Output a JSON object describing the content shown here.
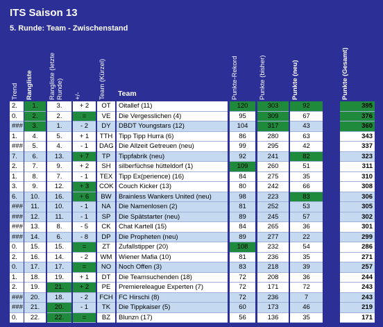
{
  "header": {
    "title": "ITS Saison 13",
    "subtitle": "5. Runde: Team - Zwischenstand"
  },
  "table": {
    "columns": [
      "Trend",
      "Rangliste",
      "Rangliste (letzte Runde)",
      "+/-",
      "Team (Kürzel)",
      "Team",
      "Punkte-Rekord",
      "Punkte (bisher)",
      "Punkte (neu)",
      "Punkte (Gesamt)"
    ],
    "rows": [
      {
        "cells": [
          "2.",
          "1.",
          "3.",
          "+ 2",
          "OT",
          "Oitallef (11)",
          120,
          303,
          92,
          395
        ],
        "fill": "#ffffff",
        "colors": [
          null,
          "#1f8a3b",
          null,
          null,
          null,
          null,
          "#1f8a3b",
          "#1f8a3b",
          "#1f8a3b",
          "#1f8a3b"
        ]
      },
      {
        "cells": [
          "0.",
          "2.",
          "2.",
          "=",
          "VE",
          "Die Vergesslichen (4)",
          95,
          309,
          67,
          376
        ],
        "fill": "#ffffff",
        "colors": [
          null,
          "#1f8a3b",
          null,
          "#1f8a3b",
          null,
          null,
          null,
          "#1f8a3b",
          null,
          "#1f8a3b"
        ]
      },
      {
        "cells": [
          "###",
          "3.",
          "1.",
          "- 2",
          "DY",
          "DBDT Youngstars (12)",
          104,
          317,
          43,
          360
        ],
        "fill": "#c5d9f1",
        "colors": [
          null,
          "#1f8a3b",
          null,
          null,
          null,
          null,
          null,
          "#1f8a3b",
          null,
          "#1f8a3b"
        ]
      },
      {
        "cells": [
          "1.",
          "4.",
          "5.",
          "+ 1",
          "TTH",
          "Tipp Tipp Hurra (6)",
          86,
          280,
          63,
          343
        ],
        "fill": "#ffffff",
        "colors": null
      },
      {
        "cells": [
          "###",
          "5.",
          "4.",
          "- 1",
          "DAG",
          "Die Allzeit Getreuen (neu)",
          99,
          295,
          42,
          337
        ],
        "fill": "#ffffff",
        "colors": null
      },
      {
        "cells": [
          "7.",
          "6.",
          "13.",
          "+ 7",
          "TP",
          "Tippfabrik (neu)",
          92,
          241,
          82,
          323
        ],
        "fill": "#c5d9f1",
        "colors": [
          null,
          null,
          null,
          "#1f8a3b",
          null,
          null,
          null,
          null,
          "#1f8a3b",
          null
        ]
      },
      {
        "cells": [
          "2.",
          "7.",
          "9.",
          "+ 2",
          "SH",
          "silberfüchse hütteldorf (1)",
          109,
          260,
          51,
          311
        ],
        "fill": "#ffffff",
        "colors": [
          null,
          null,
          null,
          null,
          null,
          null,
          "#1f8a3b",
          null,
          null,
          null
        ]
      },
      {
        "cells": [
          "1.",
          "8.",
          "7.",
          "- 1",
          "TEX",
          "Tipp Ex(perience) (16)",
          84,
          275,
          35,
          310
        ],
        "fill": "#ffffff",
        "colors": null
      },
      {
        "cells": [
          "3.",
          "9.",
          "12.",
          "+ 3",
          "COK",
          "Couch Kicker (13)",
          80,
          242,
          66,
          308
        ],
        "fill": "#ffffff",
        "colors": [
          null,
          null,
          null,
          "#1f8a3b",
          null,
          null,
          null,
          null,
          null,
          null
        ]
      },
      {
        "cells": [
          "6.",
          "10.",
          "16.",
          "+ 6",
          "BW",
          "Brainless Wankers United (neu)",
          98,
          223,
          83,
          306
        ],
        "fill": "#c5d9f1",
        "colors": [
          null,
          null,
          null,
          "#1f8a3b",
          null,
          null,
          null,
          null,
          "#1f8a3b",
          null
        ]
      },
      {
        "cells": [
          "###",
          "11.",
          "10.",
          "- 1",
          "NA",
          "Die Namenlosen (2)",
          81,
          252,
          53,
          305
        ],
        "fill": "#c5d9f1",
        "colors": null
      },
      {
        "cells": [
          "###",
          "12.",
          "11.",
          "- 1",
          "SP",
          "Die Spätstarter (neu)",
          89,
          245,
          57,
          302
        ],
        "fill": "#c5d9f1",
        "colors": null
      },
      {
        "cells": [
          "###",
          "13.",
          "8.",
          "- 5",
          "CK",
          "Chat Kartell (15)",
          84,
          265,
          36,
          301
        ],
        "fill": "#ffffff",
        "colors": null
      },
      {
        "cells": [
          "###",
          "14.",
          "6.",
          "- 8",
          "DP",
          "Die Propheten (neu)",
          89,
          277,
          22,
          299
        ],
        "fill": "#c5d9f1",
        "colors": null
      },
      {
        "cells": [
          "0.",
          "15.",
          "15.",
          "=",
          "ZT",
          "Zufallstipper (20)",
          108,
          232,
          54,
          286
        ],
        "fill": "#ffffff",
        "colors": [
          null,
          null,
          null,
          "#1f8a3b",
          null,
          null,
          "#1f8a3b",
          null,
          null,
          null
        ]
      },
      {
        "cells": [
          "2.",
          "16.",
          "14.",
          "- 2",
          "WM",
          "Wiener Mafia (10)",
          81,
          236,
          35,
          271
        ],
        "fill": "#ffffff",
        "colors": null
      },
      {
        "cells": [
          "0.",
          "17.",
          "17.",
          "=",
          "NO",
          "Noch Offen (3)",
          83,
          218,
          39,
          257
        ],
        "fill": "#c5d9f1",
        "colors": [
          null,
          null,
          null,
          "#1f8a3b",
          null,
          null,
          null,
          null,
          null,
          null
        ]
      },
      {
        "cells": [
          "1.",
          "18.",
          "19.",
          "+ 1",
          "DT",
          "Die Teamsuchenden (18)",
          72,
          208,
          36,
          244
        ],
        "fill": "#ffffff",
        "colors": null
      },
      {
        "cells": [
          "2.",
          "19.",
          "21.",
          "+ 2",
          "PE",
          "Premiereleague Experten (7)",
          72,
          171,
          72,
          243
        ],
        "fill": "#ffffff",
        "colors": [
          null,
          null,
          "#1f8a3b",
          "#1f8a3b",
          null,
          null,
          null,
          null,
          null,
          null
        ]
      },
      {
        "cells": [
          "###",
          "20.",
          "18.",
          "- 2",
          "FCH",
          "FC Hirschi (8)",
          72,
          236,
          7,
          243
        ],
        "fill": "#c5d9f1",
        "colors": null
      },
      {
        "cells": [
          "###",
          "21.",
          "20.",
          "- 1",
          "TK",
          "Die Tippkaiser (5)",
          60,
          173,
          46,
          219
        ],
        "fill": "#c5d9f1",
        "colors": [
          null,
          null,
          "#1f8a3b",
          null,
          null,
          null,
          null,
          null,
          null,
          null
        ]
      },
      {
        "cells": [
          "0.",
          "22.",
          "22.",
          "=",
          "BZ",
          "Blunzn (17)",
          56,
          136,
          35,
          171
        ],
        "fill": "#ffffff",
        "colors": [
          null,
          null,
          "#1f8a3b",
          "#1f8a3b",
          null,
          null,
          null,
          null,
          null,
          null
        ]
      }
    ]
  }
}
